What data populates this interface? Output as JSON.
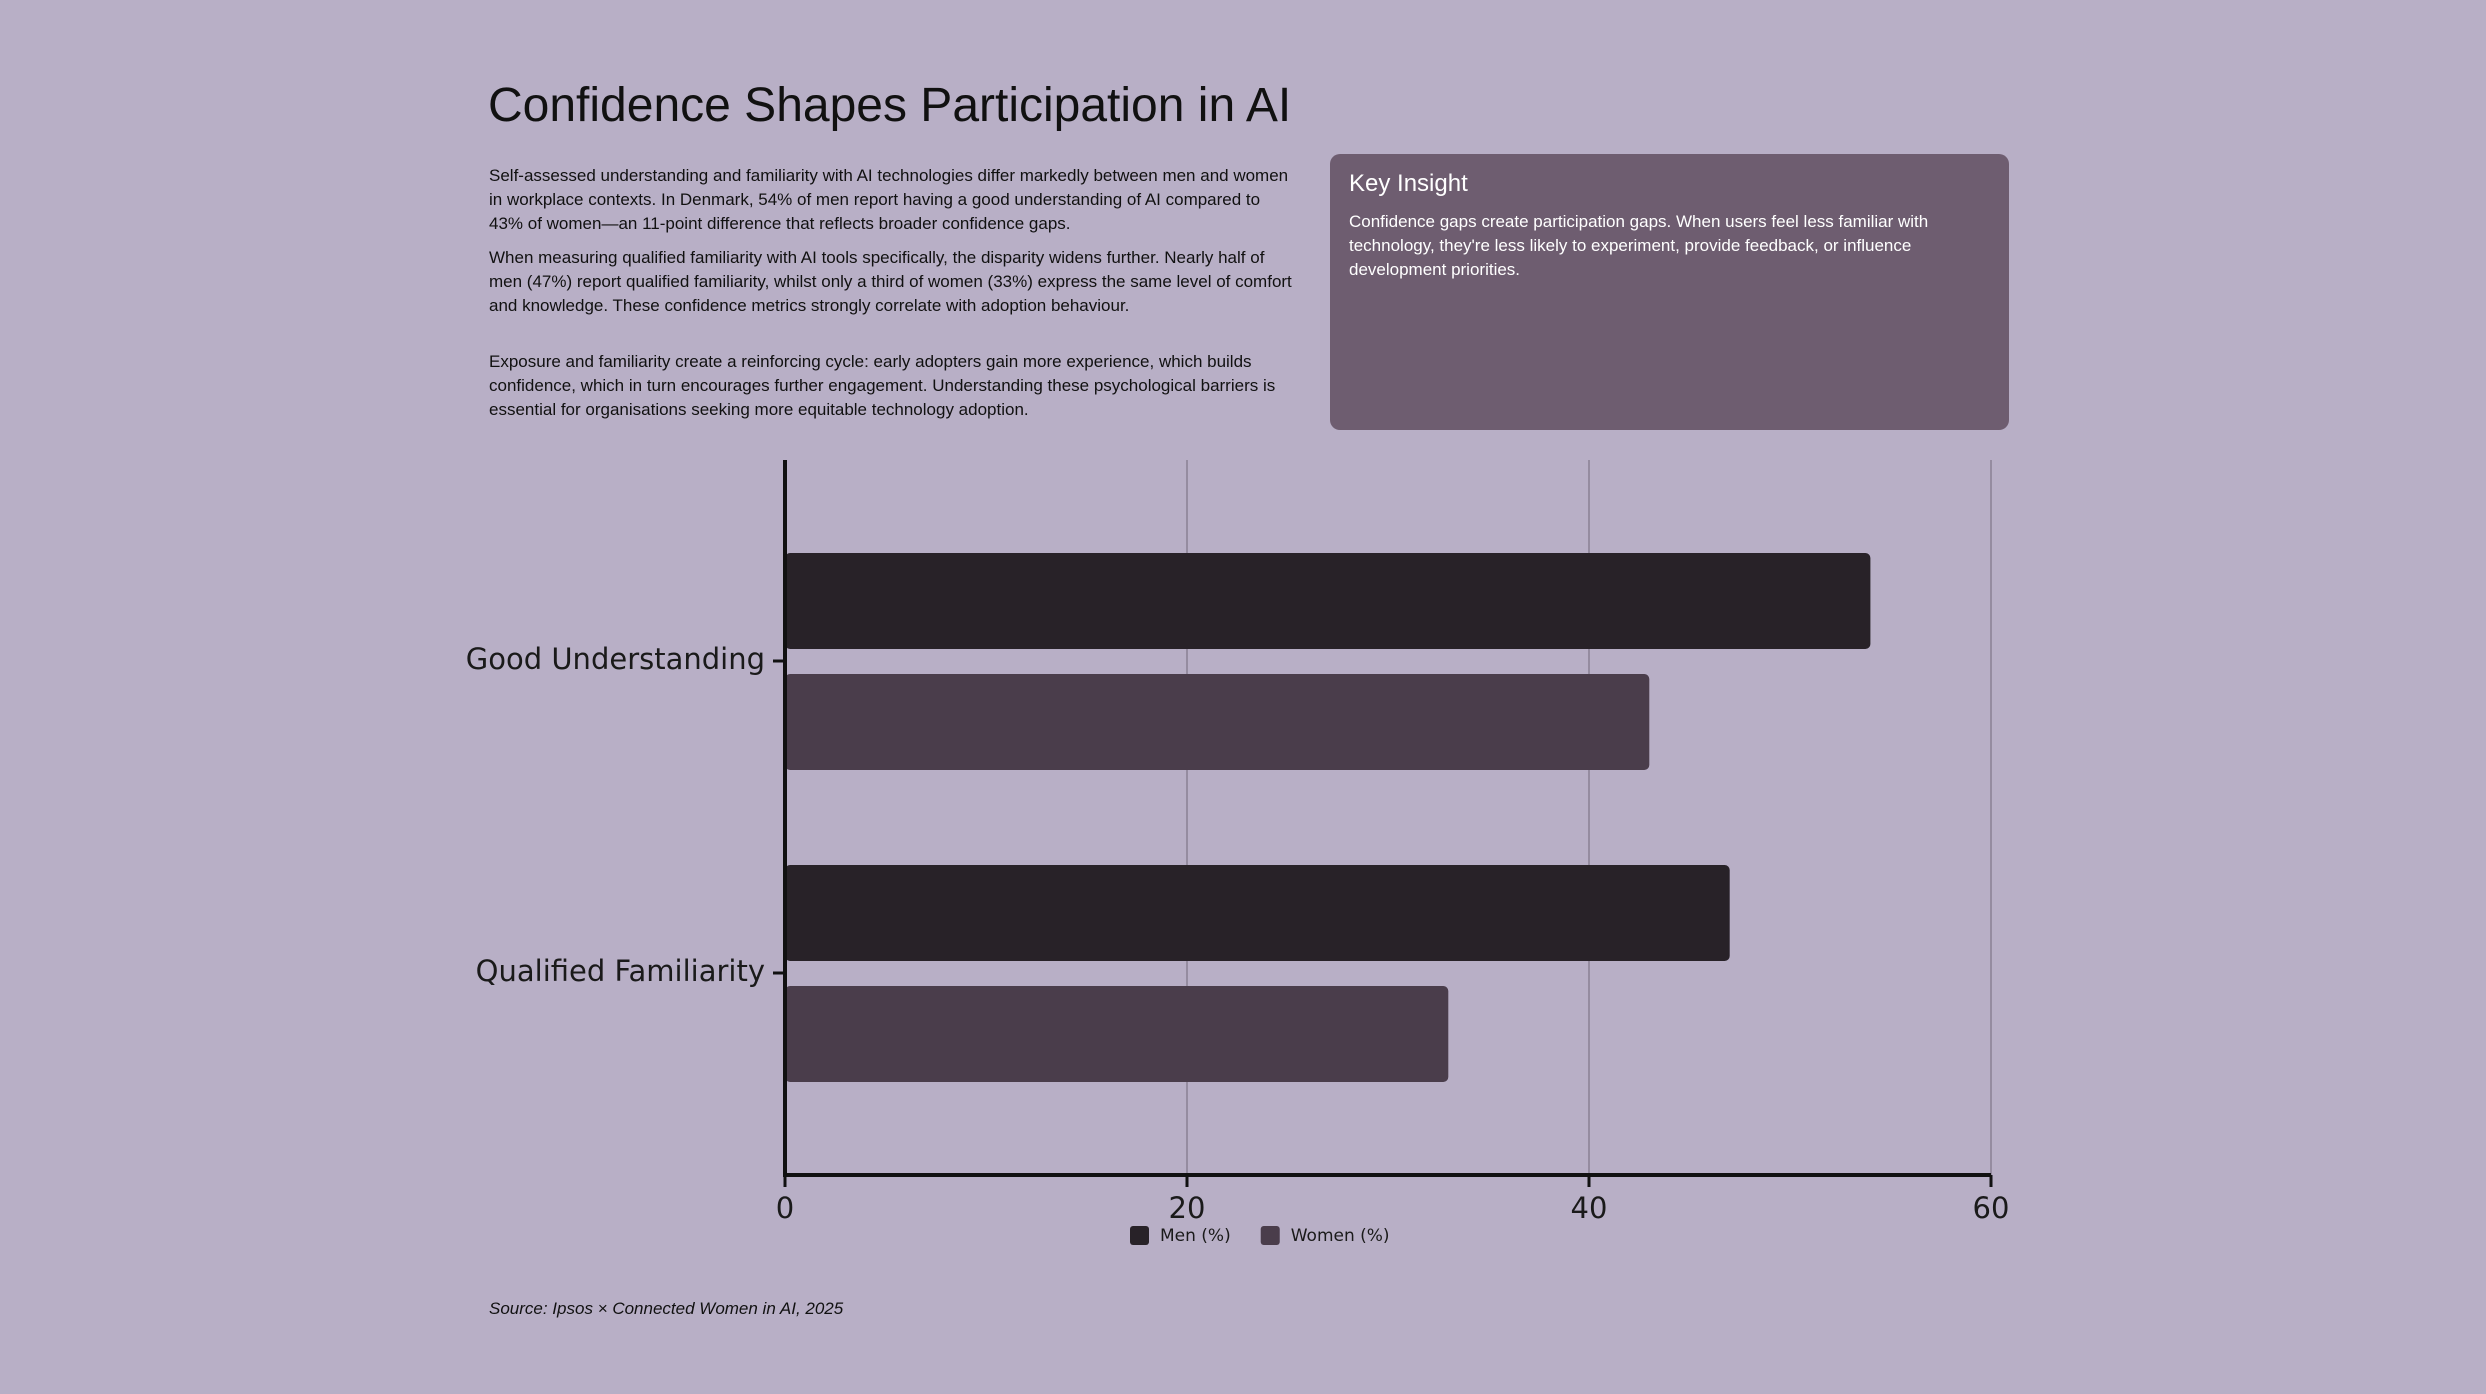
{
  "header": {
    "title": "Confidence Shapes Participation in AI",
    "paragraphs": [
      "Self-assessed understanding and familiarity with AI technologies differ markedly between men and women in workplace contexts. In Denmark, 54% of men report having a good understanding of AI compared to 43% of women—an 11-point difference that reflects broader confidence gaps.",
      "When measuring qualified familiarity with AI tools specifically, the disparity widens further. Nearly half of men (47%) report qualified familiarity, whilst only a third of women (33%) express the same level of comfort and knowledge. These confidence metrics strongly correlate with adoption behaviour.",
      "Exposure and familiarity create a reinforcing cycle: early adopters gain more experience, which builds confidence, which in turn encourages further engagement. Understanding these psychological barriers is essential for organisations seeking more equitable technology adoption."
    ]
  },
  "insight": {
    "title": "Key Insight",
    "text": "Confidence gaps create participation gaps. When users feel less familiar with technology, they're less likely to experiment, provide feedback, or influence development priorities."
  },
  "chart_data": {
    "type": "bar",
    "orientation": "horizontal",
    "categories": [
      "Good Understanding",
      "Qualified Familiarity"
    ],
    "series": [
      {
        "name": "Men (%)",
        "color": "#282228",
        "values": [
          54,
          47
        ]
      },
      {
        "name": "Women (%)",
        "color": "#4a3d4b",
        "values": [
          43,
          33
        ]
      }
    ],
    "xlim": [
      0,
      60
    ],
    "xticks": [
      0,
      20,
      40,
      60
    ],
    "grid": true
  },
  "source": "Source: Ipsos × Connected Women in AI, 2025"
}
